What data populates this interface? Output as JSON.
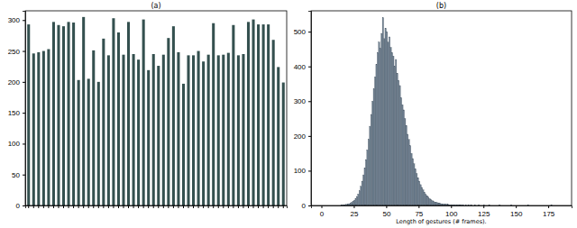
{
  "chart_data": [
    {
      "type": "bar",
      "title": "(a)",
      "categories": [
        null,
        null,
        null,
        null,
        null,
        null,
        null,
        null,
        null,
        null,
        null,
        null,
        null,
        null,
        null,
        null,
        null,
        null,
        null,
        null,
        null,
        null,
        null,
        null,
        null,
        null,
        null,
        null,
        null,
        null,
        null,
        null,
        null,
        null,
        null,
        null,
        null,
        null,
        null,
        null,
        null,
        null,
        null,
        null,
        null,
        null,
        null,
        null,
        null,
        null,
        null,
        null
      ],
      "values": [
        293,
        246,
        248,
        250,
        253,
        297,
        292,
        290,
        297,
        296,
        203,
        305,
        205,
        251,
        200,
        270,
        243,
        303,
        280,
        244,
        297,
        245,
        236,
        301,
        219,
        245,
        226,
        244,
        271,
        290,
        248,
        197,
        243,
        243,
        250,
        233,
        244,
        295,
        243,
        244,
        247,
        292,
        243,
        245,
        297,
        301,
        293,
        293,
        293,
        268,
        224,
        199
      ],
      "color": "#34504f",
      "ylim": [
        0,
        315
      ],
      "yticks": [
        0,
        50,
        100,
        150,
        200,
        250,
        300
      ],
      "tick_labels": "y"
    },
    {
      "type": "histogram",
      "title": "(b)",
      "x_label": "Length of gestures (# frames).",
      "bins": [
        15,
        16,
        17,
        18,
        19,
        20,
        21,
        22,
        23,
        24,
        25,
        26,
        27,
        28,
        29,
        30,
        31,
        32,
        33,
        34,
        35,
        36,
        37,
        38,
        39,
        40,
        41,
        42,
        43,
        44,
        45,
        46,
        47,
        48,
        49,
        50,
        51,
        52,
        53,
        54,
        55,
        56,
        57,
        58,
        59,
        60,
        61,
        62,
        63,
        64,
        65,
        66,
        67,
        68,
        69,
        70,
        71,
        72,
        73,
        74,
        75,
        76,
        77,
        78,
        79,
        80,
        81,
        82,
        83,
        84,
        85,
        86,
        87,
        88,
        89,
        90,
        91,
        92,
        93,
        94,
        95,
        96,
        97,
        98,
        99,
        100,
        101,
        102,
        103,
        104,
        105,
        106,
        107,
        108,
        109,
        110,
        111,
        112,
        113,
        114,
        115,
        116,
        117,
        118,
        119,
        120,
        121,
        122,
        123,
        124,
        125,
        126,
        127,
        128,
        129,
        130,
        131,
        132,
        133,
        134,
        135,
        136,
        137,
        138,
        139,
        140,
        141,
        142,
        143,
        144,
        145,
        146,
        147,
        148,
        149,
        150,
        151,
        152,
        153,
        154,
        155,
        156,
        157,
        158,
        159,
        160,
        161,
        162,
        163,
        164,
        165,
        166,
        167,
        168,
        169,
        170,
        171,
        172,
        173,
        174,
        175,
        176,
        177,
        178,
        179,
        180,
        181,
        182,
        183,
        184,
        185,
        186,
        187,
        188,
        189,
        190
      ],
      "values": [
        1,
        1,
        2,
        2,
        3,
        4,
        5,
        7,
        9,
        12,
        15,
        20,
        26,
        33,
        42,
        55,
        70,
        88,
        108,
        132,
        160,
        190,
        228,
        262,
        300,
        335,
        370,
        405,
        440,
        470,
        452,
        495,
        540,
        480,
        510,
        500,
        470,
        485,
        455,
        440,
        430,
        400,
        420,
        380,
        360,
        345,
        310,
        290,
        275,
        250,
        230,
        205,
        190,
        172,
        150,
        135,
        120,
        105,
        92,
        80,
        70,
        60,
        52,
        45,
        38,
        32,
        28,
        24,
        20,
        17,
        14,
        12,
        10,
        9,
        8,
        7,
        6,
        5,
        4,
        4,
        3,
        3,
        3,
        2,
        2,
        2,
        2,
        1,
        1,
        1,
        1,
        1,
        1,
        1,
        1,
        0,
        1,
        0,
        1,
        0,
        1,
        0,
        0,
        1,
        0,
        0,
        1,
        0,
        0,
        0,
        1,
        0,
        0,
        0,
        1,
        0,
        0,
        0,
        0,
        0,
        0,
        0,
        1,
        0,
        0,
        0,
        0,
        0,
        0,
        0,
        0,
        1,
        0,
        0,
        0,
        0,
        0,
        0,
        0,
        0,
        0,
        0,
        0,
        0,
        1,
        0,
        0,
        0,
        0,
        0,
        0,
        0,
        0,
        0,
        0,
        0,
        0,
        0,
        0,
        0,
        0,
        0,
        1,
        0,
        0,
        0,
        0,
        0,
        0,
        0,
        0,
        0,
        0,
        0,
        0
      ],
      "color": "#6e7f8f",
      "xlim": [
        -8,
        193
      ],
      "xticks": [
        0,
        25,
        50,
        75,
        100,
        125,
        150,
        175
      ],
      "ylim": [
        0,
        560
      ],
      "yticks": [
        0,
        100,
        200,
        300,
        400,
        500
      ]
    }
  ]
}
